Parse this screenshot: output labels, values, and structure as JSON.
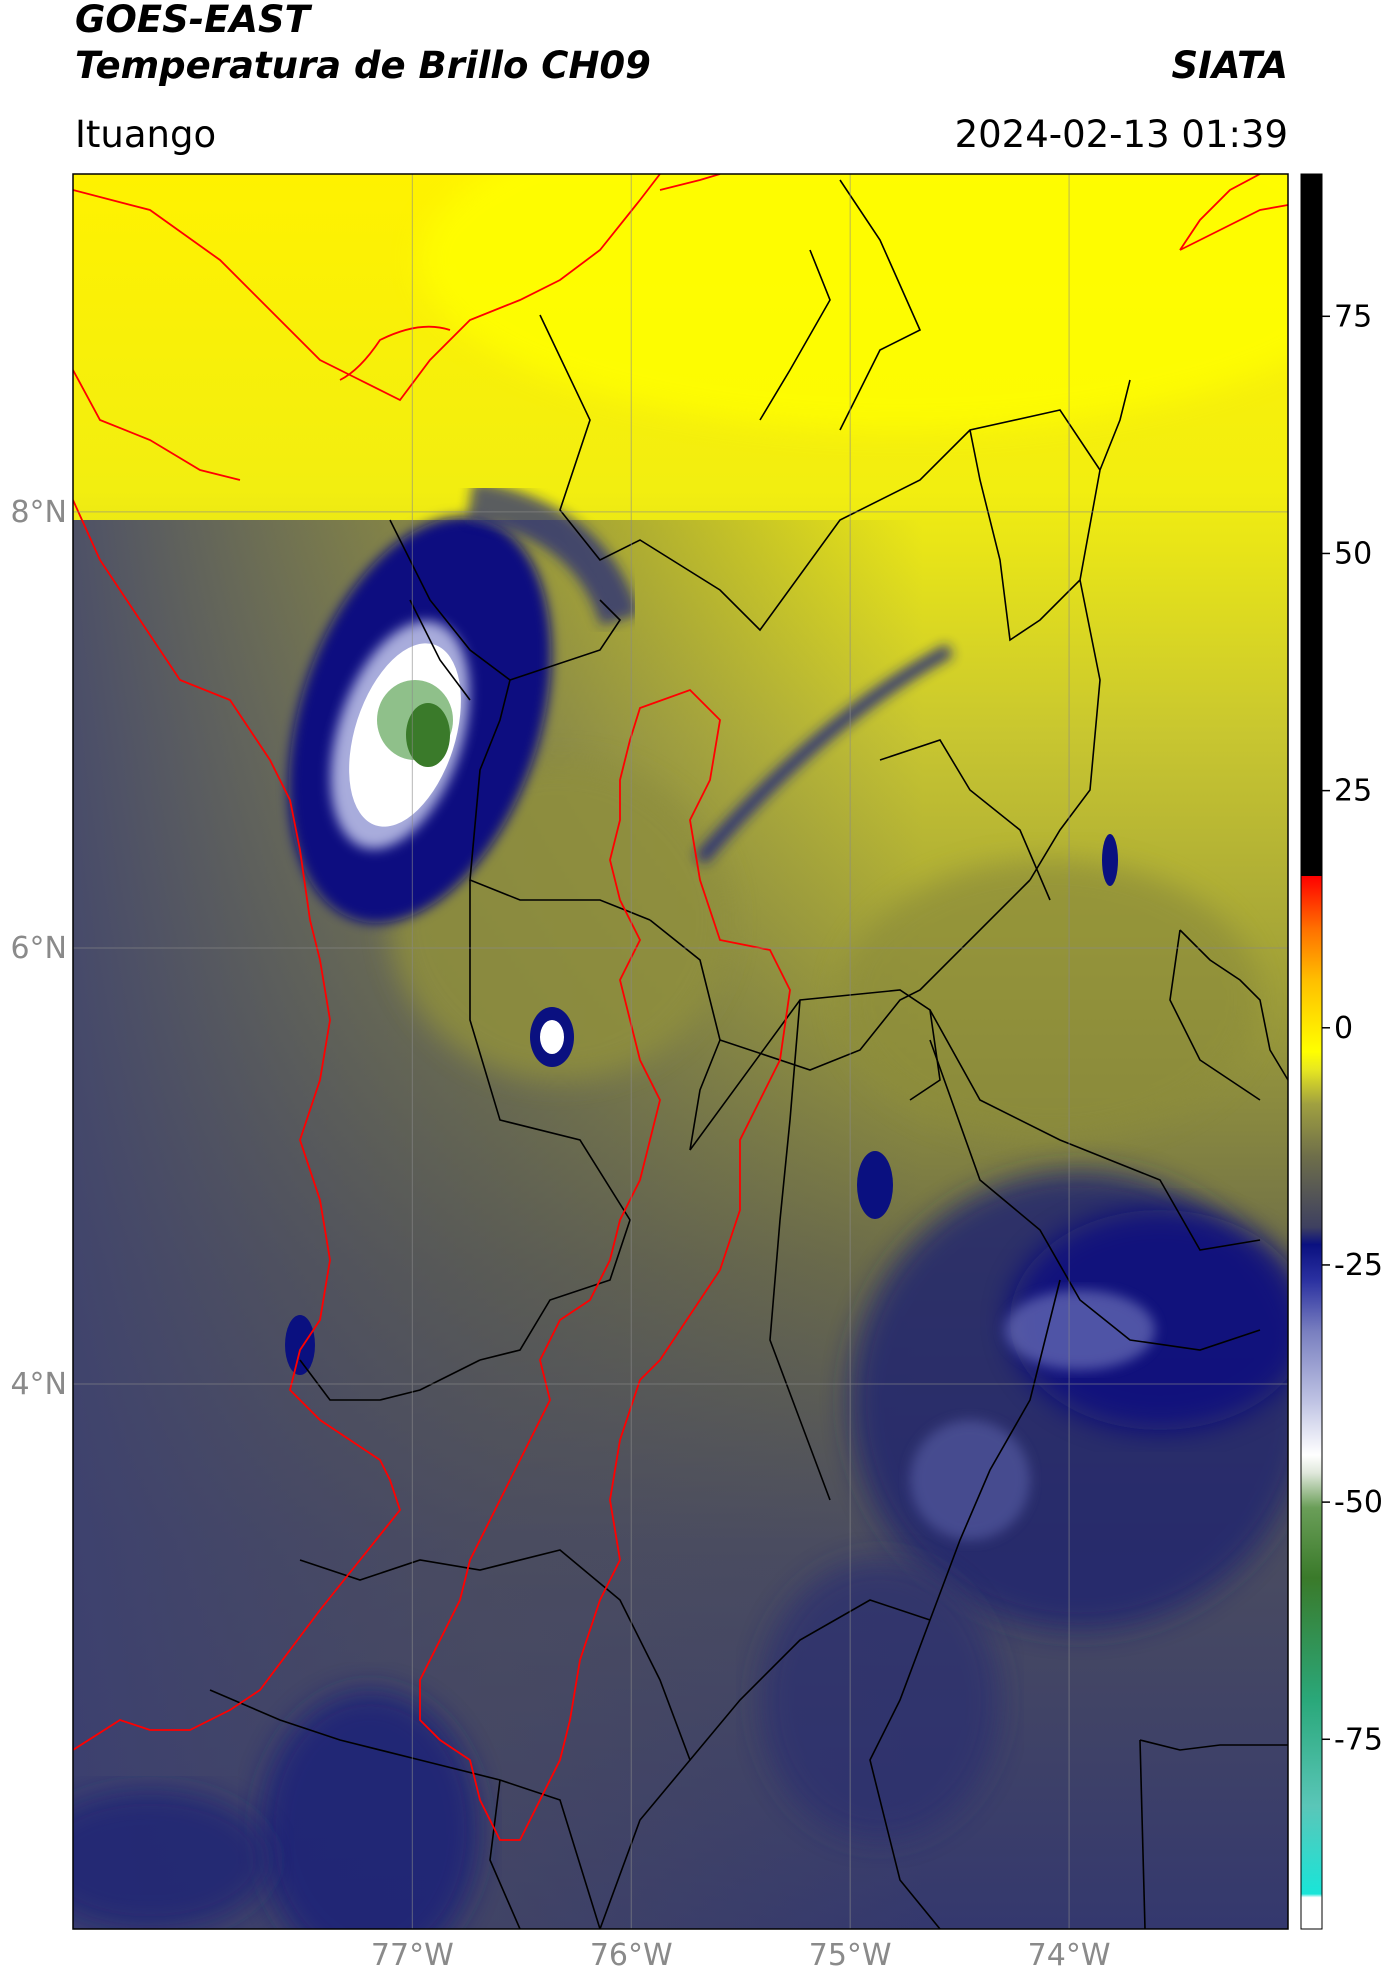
{
  "header": {
    "title_line1": "GOES-EAST",
    "title_line2": "Temperatura de Brillo CH09",
    "org": "SIATA",
    "region": "Ituango",
    "datetime": "2024-02-13 01:39"
  },
  "map": {
    "lon_range": [
      -78.55,
      -73.0
    ],
    "lat_range": [
      1.5,
      9.55
    ],
    "x_ticks": [
      {
        "value": -77,
        "label": "77°W"
      },
      {
        "value": -76,
        "label": "76°W"
      },
      {
        "value": -75,
        "label": "75°W"
      },
      {
        "value": -74,
        "label": "74°W"
      }
    ],
    "y_ticks": [
      {
        "value": 8,
        "label": "8°N"
      },
      {
        "value": 6,
        "label": "6°N"
      },
      {
        "value": 4,
        "label": "4°N"
      }
    ]
  },
  "colorbar": {
    "range": [
      -95,
      90
    ],
    "ticks": [
      {
        "value": 75,
        "label": "75"
      },
      {
        "value": 50,
        "label": "50"
      },
      {
        "value": 25,
        "label": "25"
      },
      {
        "value": 0,
        "label": "0"
      },
      {
        "value": -25,
        "label": "-25"
      },
      {
        "value": -50,
        "label": "-50"
      },
      {
        "value": -75,
        "label": "-75"
      }
    ],
    "colors": [
      "#ffffff",
      "#19e5d8",
      "#2aa87a",
      "#3a7a2a",
      "#ffffff",
      "#a0a6d8",
      "#0a1080",
      "#3e4060",
      "#8a8c40",
      "#ffff00",
      "#ff8a00",
      "#ff0000",
      "#000000"
    ]
  }
}
